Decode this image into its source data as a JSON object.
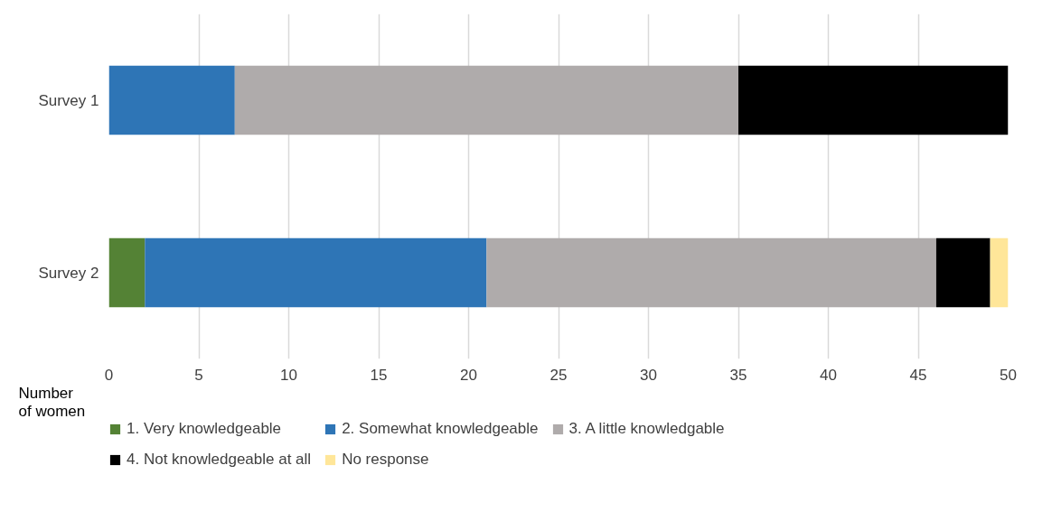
{
  "chart_data": {
    "type": "bar",
    "orientation": "horizontal",
    "stacked": true,
    "categories": [
      "Survey 1",
      "Survey 2"
    ],
    "series": [
      {
        "name": "1. Very knowledgeable",
        "color": "#548235",
        "values": [
          0,
          2
        ]
      },
      {
        "name": "2. Somewhat knowledgeable",
        "color": "#2e75b6",
        "values": [
          7,
          19
        ]
      },
      {
        "name": "3. A little knowledgable",
        "color": "#afabab",
        "values": [
          28,
          25
        ]
      },
      {
        "name": "4. Not knowledgeable at all",
        "color": "#000000",
        "values": [
          15,
          3
        ]
      },
      {
        "name": "No response",
        "color": "#ffe699",
        "values": [
          0,
          1
        ]
      }
    ],
    "xlabel": "Number\nof women",
    "xlim": [
      0,
      50
    ],
    "xticks": [
      0,
      5,
      10,
      15,
      20,
      25,
      30,
      35,
      40,
      45,
      50
    ],
    "grid": "x",
    "legend": "bottom"
  }
}
